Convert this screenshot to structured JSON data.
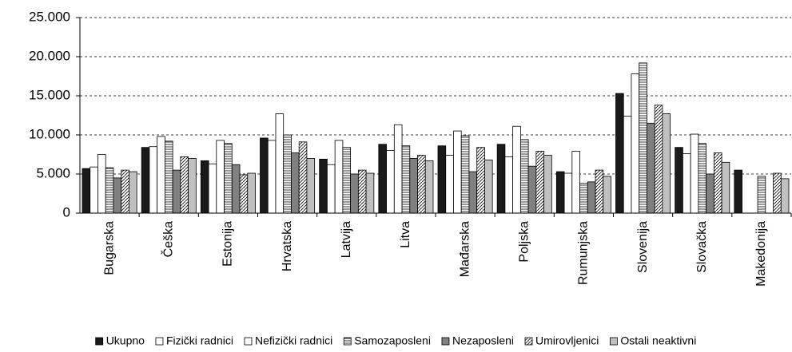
{
  "chart_data": {
    "type": "bar",
    "categories": [
      "Bugarska",
      "Češka",
      "Estonija",
      "Hrvatska",
      "Latvija",
      "Litva",
      "Mađarska",
      "Poljska",
      "Rumunjska",
      "Slovenija",
      "Slovačka",
      "Makedonija"
    ],
    "series": [
      {
        "name": "Ukupno",
        "color": "#1a1a1a",
        "pattern": "solid",
        "values": [
          5700,
          8400,
          6700,
          9600,
          6900,
          8800,
          8600,
          8800,
          5300,
          15300,
          8400,
          5500
        ]
      },
      {
        "name": "Fizički radnici",
        "color": "#ffffff",
        "pattern": "solid",
        "values": [
          5900,
          8500,
          6300,
          9300,
          6200,
          8000,
          7400,
          7200,
          5100,
          12400,
          7600,
          null
        ]
      },
      {
        "name": "Nefizički radnici",
        "color": "#ffffff",
        "pattern": "solid",
        "values": [
          7500,
          9800,
          9300,
          12700,
          9300,
          11300,
          10500,
          11100,
          7900,
          17800,
          10100,
          null
        ]
      },
      {
        "name": "Samozaposleni",
        "color": "#ffffff",
        "pattern": "hlines",
        "values": [
          5800,
          9200,
          8900,
          10000,
          8400,
          8600,
          9900,
          9400,
          3800,
          19200,
          8900,
          4700
        ]
      },
      {
        "name": "Nezaposleni",
        "color": "#808080",
        "pattern": "solid",
        "values": [
          4500,
          5500,
          6200,
          7700,
          5000,
          7000,
          5300,
          6000,
          4000,
          11500,
          5000,
          null
        ]
      },
      {
        "name": "Umirovljenici",
        "color": "#ffffff",
        "pattern": "diag",
        "values": [
          5500,
          7200,
          4900,
          9100,
          5500,
          7400,
          8400,
          7900,
          5500,
          13800,
          7700,
          5100
        ]
      },
      {
        "name": "Ostali neaktivni",
        "color": "#c0c0c0",
        "pattern": "solid",
        "values": [
          5300,
          7000,
          5100,
          7000,
          5100,
          6700,
          6800,
          7400,
          4700,
          12700,
          6500,
          4400
        ]
      }
    ],
    "ylim": [
      0,
      25000
    ],
    "yticks": [
      0,
      {
        "value": 5000,
        "label": "5.000"
      },
      {
        "value": 10000,
        "label": "10.000"
      },
      {
        "value": 15000,
        "label": "15.000"
      },
      {
        "value": 20000,
        "label": "20.000"
      },
      {
        "value": 25000,
        "label": "25.000"
      }
    ],
    "grid": true,
    "legend": "bottom"
  }
}
